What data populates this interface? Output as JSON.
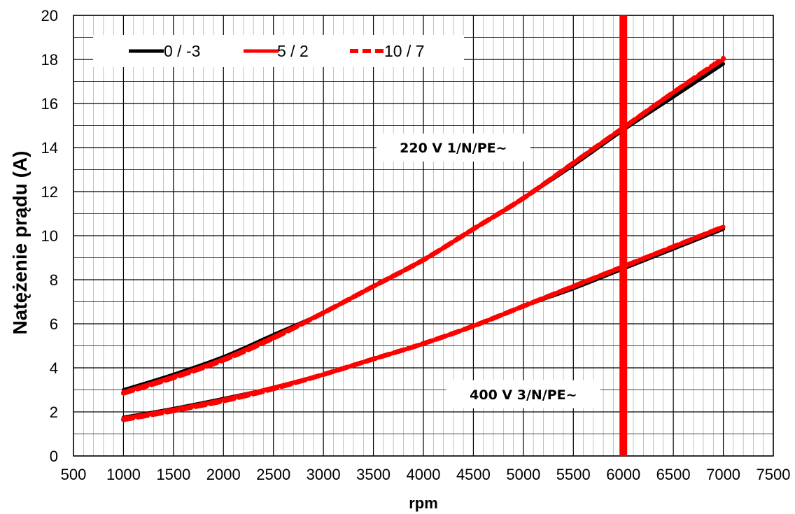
{
  "chart_data": {
    "type": "line",
    "title": "",
    "xlabel": "rpm",
    "ylabel": "Natężenie prądu (A)",
    "xlim": [
      500,
      7500
    ],
    "ylim": [
      0,
      20
    ],
    "x_ticks": [
      500,
      1000,
      1500,
      2000,
      2500,
      3000,
      3500,
      4000,
      4500,
      5000,
      5500,
      6000,
      6500,
      7000,
      7500
    ],
    "y_ticks": [
      0,
      2,
      4,
      6,
      8,
      10,
      12,
      14,
      16,
      18,
      20
    ],
    "grid": true,
    "legend_position": "top-left",
    "legend": [
      "0 / -3",
      "5 / 2",
      "10 / 7"
    ],
    "x": [
      1000,
      1500,
      2000,
      2500,
      3000,
      3500,
      4000,
      4500,
      5000,
      5500,
      6000,
      6500,
      7000
    ],
    "series": [
      {
        "name": "0 / -3",
        "group": "220 V 1/N/PE~",
        "color": "#000000",
        "style": "solid",
        "values": [
          3.0,
          3.7,
          4.5,
          5.5,
          6.5,
          7.7,
          8.9,
          10.3,
          11.7,
          13.2,
          14.8,
          16.3,
          17.8
        ]
      },
      {
        "name": "0 / -3",
        "group": "400 V 3/N/PE~",
        "color": "#000000",
        "style": "solid",
        "values": [
          1.75,
          2.15,
          2.6,
          3.1,
          3.7,
          4.4,
          5.1,
          5.9,
          6.8,
          7.6,
          8.5,
          9.4,
          10.3
        ]
      },
      {
        "name": "5 / 2",
        "group": "220 V 1/N/PE~",
        "color": "#ff0000",
        "style": "solid",
        "values": [
          2.9,
          3.6,
          4.4,
          5.4,
          6.5,
          7.7,
          8.9,
          10.3,
          11.7,
          13.3,
          14.9,
          16.5,
          18.0
        ]
      },
      {
        "name": "5 / 2",
        "group": "400 V 3/N/PE~",
        "color": "#ff0000",
        "style": "solid",
        "values": [
          1.7,
          2.1,
          2.55,
          3.1,
          3.7,
          4.4,
          5.1,
          5.9,
          6.8,
          7.7,
          8.6,
          9.5,
          10.4
        ]
      },
      {
        "name": "10 / 7",
        "group": "220 V 1/N/PE~",
        "color": "#ff0000",
        "style": "dashed",
        "values": [
          2.85,
          3.55,
          4.35,
          5.35,
          6.5,
          7.7,
          8.9,
          10.3,
          11.7,
          13.3,
          14.9,
          16.5,
          18.05
        ]
      },
      {
        "name": "10 / 7",
        "group": "400 V 3/N/PE~",
        "color": "#ff0000",
        "style": "dashed",
        "values": [
          1.65,
          2.05,
          2.5,
          3.05,
          3.7,
          4.4,
          5.1,
          5.9,
          6.8,
          7.7,
          8.6,
          9.5,
          10.4
        ]
      }
    ],
    "vertical_marker": {
      "x": 6000,
      "color": "#ff0000"
    },
    "annotations": [
      {
        "text": "220 V 1/N/PE~",
        "x": 4300,
        "y": 14.0
      },
      {
        "text": "400 V 3/N/PE~",
        "x": 5000,
        "y": 2.8
      }
    ]
  }
}
